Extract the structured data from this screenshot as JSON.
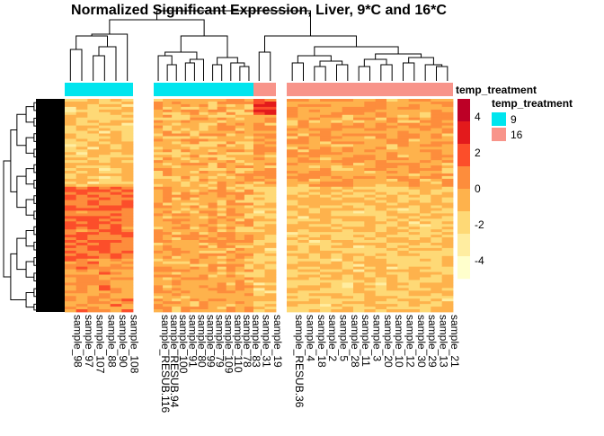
{
  "chart_data": {
    "type": "heatmap",
    "title": "Normalized Significant Expression, Liver, 9*C and 16*C",
    "columns": [
      "sample_98",
      "sample_97",
      "sample_107",
      "sample_88",
      "sample_90",
      "sample_108",
      "sample_RESUB.116",
      "sample_RESUB.94",
      "sample_100",
      "sample_91",
      "sample_80",
      "sample_99",
      "sample_79",
      "sample_109",
      "sample_110",
      "sample_78",
      "sample_83",
      "sample_31",
      "sample_19",
      "sample_RESUB.36",
      "sample_4",
      "sample_18",
      "sample_2",
      "sample_5",
      "sample_28",
      "sample_11",
      "sample_3",
      "sample_20",
      "sample_10",
      "sample_12",
      "sample_30",
      "sample_29",
      "sample_13",
      "sample_21"
    ],
    "column_split": [
      {
        "group": "9",
        "columns": 6
      },
      {
        "group": "9",
        "columns": 11
      },
      {
        "group": "16",
        "columns": 2
      },
      {
        "group": "16",
        "columns": 15
      }
    ],
    "annotation": {
      "name": "temp_treatment",
      "legend_title": "temp_treatment",
      "levels": [
        {
          "label": "9",
          "color": "#00E5EE"
        },
        {
          "label": "16",
          "color": "#F8948A"
        }
      ]
    },
    "color_scale": {
      "title": "",
      "ticks": [
        4,
        2,
        0,
        -2,
        -4
      ],
      "range": [
        -5,
        5
      ],
      "colors": [
        "#FFFFCC",
        "#FFEDA0",
        "#FED976",
        "#FEB24C",
        "#FD8D3C",
        "#FC4E2A",
        "#E31A1C",
        "#BD0026"
      ]
    },
    "row_dendrogram": true,
    "column_dendrogram": true,
    "legend_placement": "right"
  }
}
